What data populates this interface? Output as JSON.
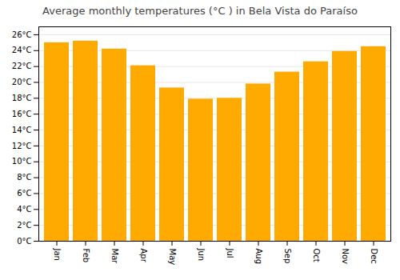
{
  "chart_data": {
    "type": "bar",
    "title": "Average monthly temperatures (°C ) in Bela Vista do Paraíso",
    "categories": [
      "Jan",
      "Feb",
      "Mar",
      "Apr",
      "May",
      "Jun",
      "Jul",
      "Aug",
      "Sep",
      "Oct",
      "Nov",
      "Dec"
    ],
    "values": [
      25.0,
      25.2,
      24.2,
      22.1,
      19.3,
      17.9,
      18.0,
      19.8,
      21.3,
      22.6,
      23.9,
      24.5
    ],
    "color": "#FFAA00",
    "ylim": [
      0,
      27
    ],
    "yticks": [
      {
        "value": 0,
        "label": "0°C"
      },
      {
        "value": 2,
        "label": "2°C"
      },
      {
        "value": 4,
        "label": "4°C"
      },
      {
        "value": 6,
        "label": "6°C"
      },
      {
        "value": 8,
        "label": "8°C"
      },
      {
        "value": 10,
        "label": "10°C"
      },
      {
        "value": 12,
        "label": "12°C"
      },
      {
        "value": 14,
        "label": "14°C"
      },
      {
        "value": 16,
        "label": "16°C"
      },
      {
        "value": 18,
        "label": "18°C"
      },
      {
        "value": 20,
        "label": "20°C"
      },
      {
        "value": 22,
        "label": "22°C"
      },
      {
        "value": 24,
        "label": "24°C"
      },
      {
        "value": 26,
        "label": "26°C"
      }
    ],
    "grid": true
  }
}
